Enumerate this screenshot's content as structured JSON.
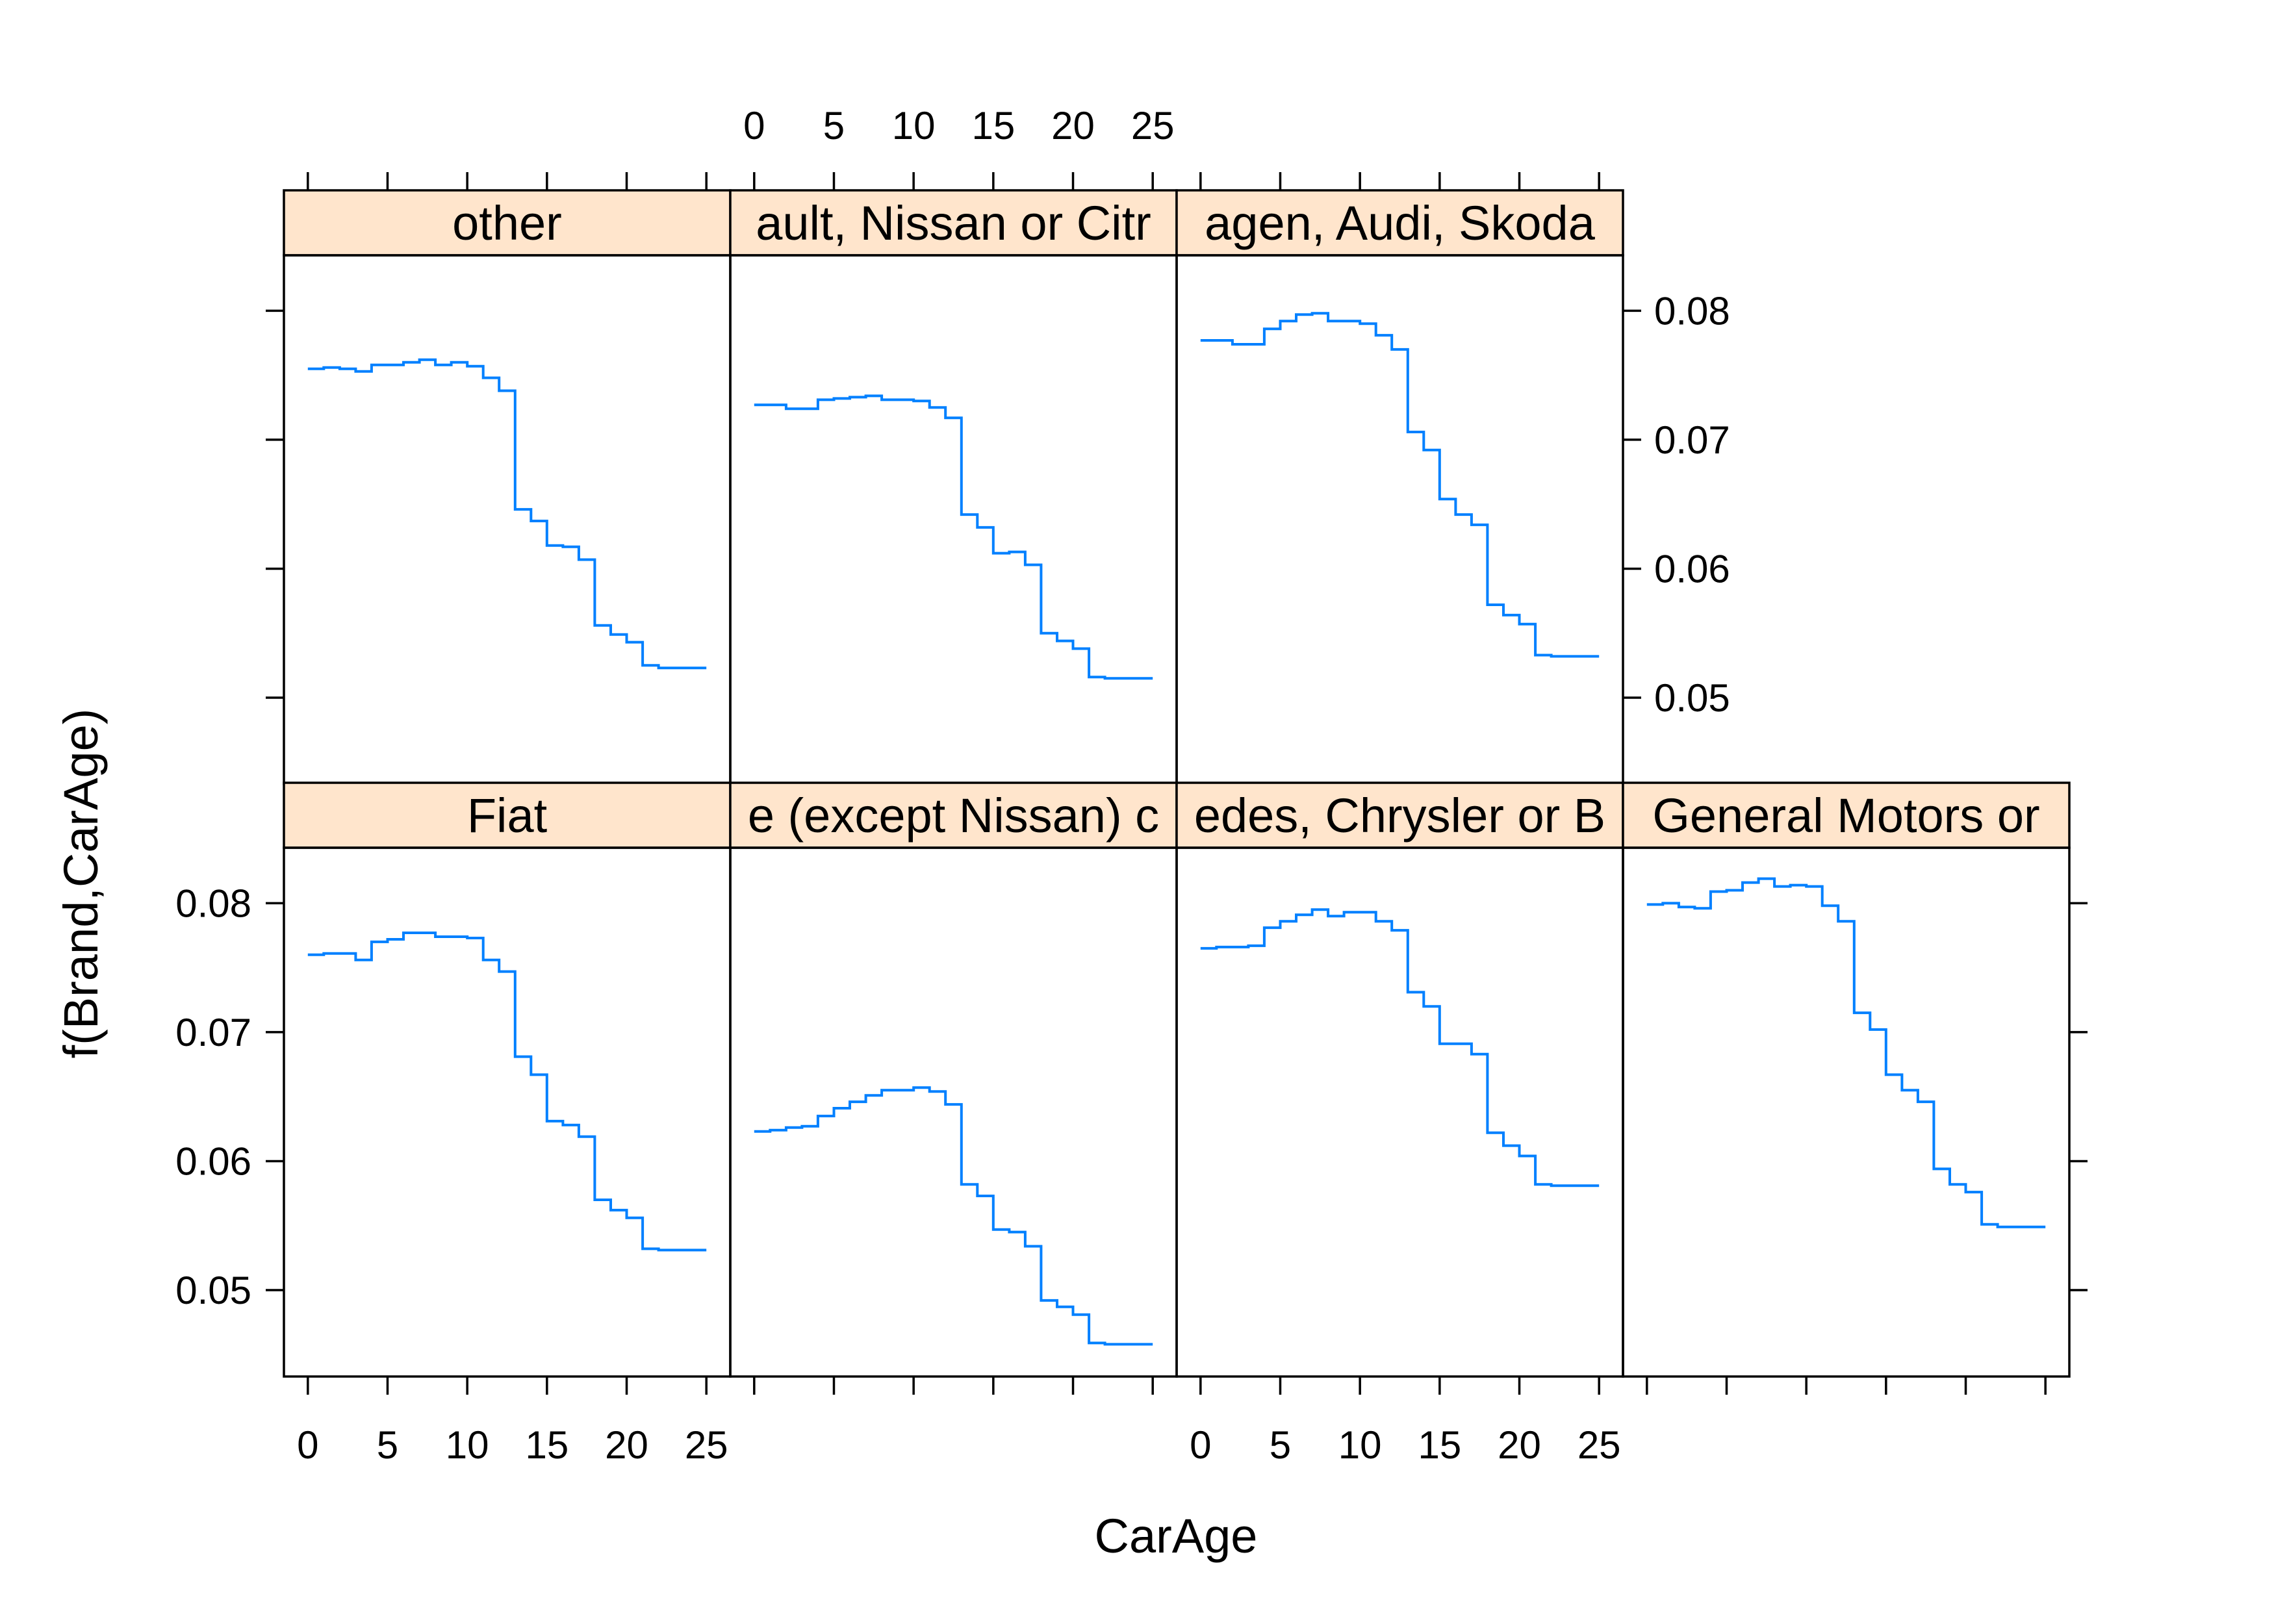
{
  "chart_data": {
    "type": "line",
    "step": true,
    "layout": "lattice 4 columns x 2 rows",
    "xlabel": "CarAge",
    "ylabel": "f(Brand,CarAge)",
    "xlim": [
      -1.5,
      26.5
    ],
    "ylim": [
      0.0433,
      0.0843
    ],
    "xticks": [
      0,
      5,
      10,
      15,
      20,
      25
    ],
    "xtick_labels": [
      "0",
      "5",
      "10",
      "15",
      "20",
      "25"
    ],
    "yticks": [
      0.05,
      0.06,
      0.07,
      0.08
    ],
    "ytick_labels": [
      "0.05",
      "0.06",
      "0.07",
      "0.08"
    ],
    "x": [
      0,
      1,
      2,
      3,
      4,
      5,
      6,
      7,
      8,
      9,
      10,
      11,
      12,
      13,
      14,
      15,
      16,
      17,
      18,
      19,
      20,
      21,
      22,
      23,
      24,
      25
    ],
    "panels": [
      {
        "strip": "other",
        "row": 0,
        "col": 0,
        "values": [
          0.0755,
          0.0756,
          0.0755,
          0.0753,
          0.0758,
          0.0758,
          0.076,
          0.0762,
          0.0758,
          0.076,
          0.0757,
          0.0748,
          0.0738,
          0.0646,
          0.0637,
          0.0618,
          0.0617,
          0.0607,
          0.0556,
          0.0549,
          0.0543,
          0.0525,
          0.0523,
          0.0523,
          0.0523,
          0.0523
        ]
      },
      {
        "strip": "ault, Nissan or Citr",
        "row": 0,
        "col": 1,
        "values": [
          0.0727,
          0.0727,
          0.0724,
          0.0724,
          0.0731,
          0.0732,
          0.0733,
          0.0734,
          0.0731,
          0.0731,
          0.073,
          0.0725,
          0.0717,
          0.0642,
          0.0632,
          0.0612,
          0.0613,
          0.0603,
          0.055,
          0.0544,
          0.0538,
          0.0516,
          0.0515,
          0.0515,
          0.0515,
          0.0515
        ]
      },
      {
        "strip": "agen, Audi, Skoda",
        "row": 0,
        "col": 2,
        "values": [
          0.0777,
          0.0777,
          0.0774,
          0.0774,
          0.0786,
          0.0792,
          0.0797,
          0.0798,
          0.0792,
          0.0792,
          0.079,
          0.0781,
          0.077,
          0.0706,
          0.0692,
          0.0654,
          0.0642,
          0.0634,
          0.0572,
          0.0564,
          0.0557,
          0.0533,
          0.0532,
          0.0532,
          0.0532,
          0.0532
        ]
      },
      {
        "strip": "Fiat",
        "row": 1,
        "col": 0,
        "values": [
          0.076,
          0.0761,
          0.0761,
          0.0756,
          0.077,
          0.0772,
          0.0777,
          0.0777,
          0.0774,
          0.0774,
          0.0773,
          0.0756,
          0.0747,
          0.0681,
          0.0667,
          0.0631,
          0.0628,
          0.0619,
          0.057,
          0.0562,
          0.0556,
          0.0532,
          0.0531,
          0.0531,
          0.0531,
          0.0531
        ]
      },
      {
        "strip": "e (except Nissan) c",
        "row": 1,
        "col": 1,
        "values": [
          0.0623,
          0.0624,
          0.0626,
          0.0627,
          0.0635,
          0.0641,
          0.0646,
          0.0651,
          0.0655,
          0.0655,
          0.0657,
          0.0654,
          0.0644,
          0.0582,
          0.0573,
          0.0547,
          0.0545,
          0.0534,
          0.0492,
          0.0487,
          0.0481,
          0.0459,
          0.0458,
          0.0458,
          0.0458,
          0.0458
        ]
      },
      {
        "strip": "edes, Chrysler or B",
        "row": 1,
        "col": 2,
        "values": [
          0.0765,
          0.0766,
          0.0766,
          0.0767,
          0.0781,
          0.0786,
          0.0791,
          0.0795,
          0.079,
          0.0793,
          0.0793,
          0.0786,
          0.0779,
          0.0731,
          0.072,
          0.0691,
          0.0691,
          0.0683,
          0.0622,
          0.0612,
          0.0604,
          0.0582,
          0.0581,
          0.0581,
          0.0581,
          0.0581
        ]
      },
      {
        "strip": "General Motors or",
        "row": 1,
        "col": 3,
        "values": [
          0.0799,
          0.08,
          0.0797,
          0.0796,
          0.0809,
          0.081,
          0.0816,
          0.0819,
          0.0813,
          0.0814,
          0.0813,
          0.0798,
          0.0786,
          0.0715,
          0.0702,
          0.0667,
          0.0655,
          0.0646,
          0.0594,
          0.0582,
          0.0576,
          0.0551,
          0.0549,
          0.0549,
          0.0549,
          0.0549
        ]
      }
    ],
    "series_color": "#0080ff",
    "strip_color": "#ffe5cc",
    "grid": false,
    "legend": "none"
  }
}
